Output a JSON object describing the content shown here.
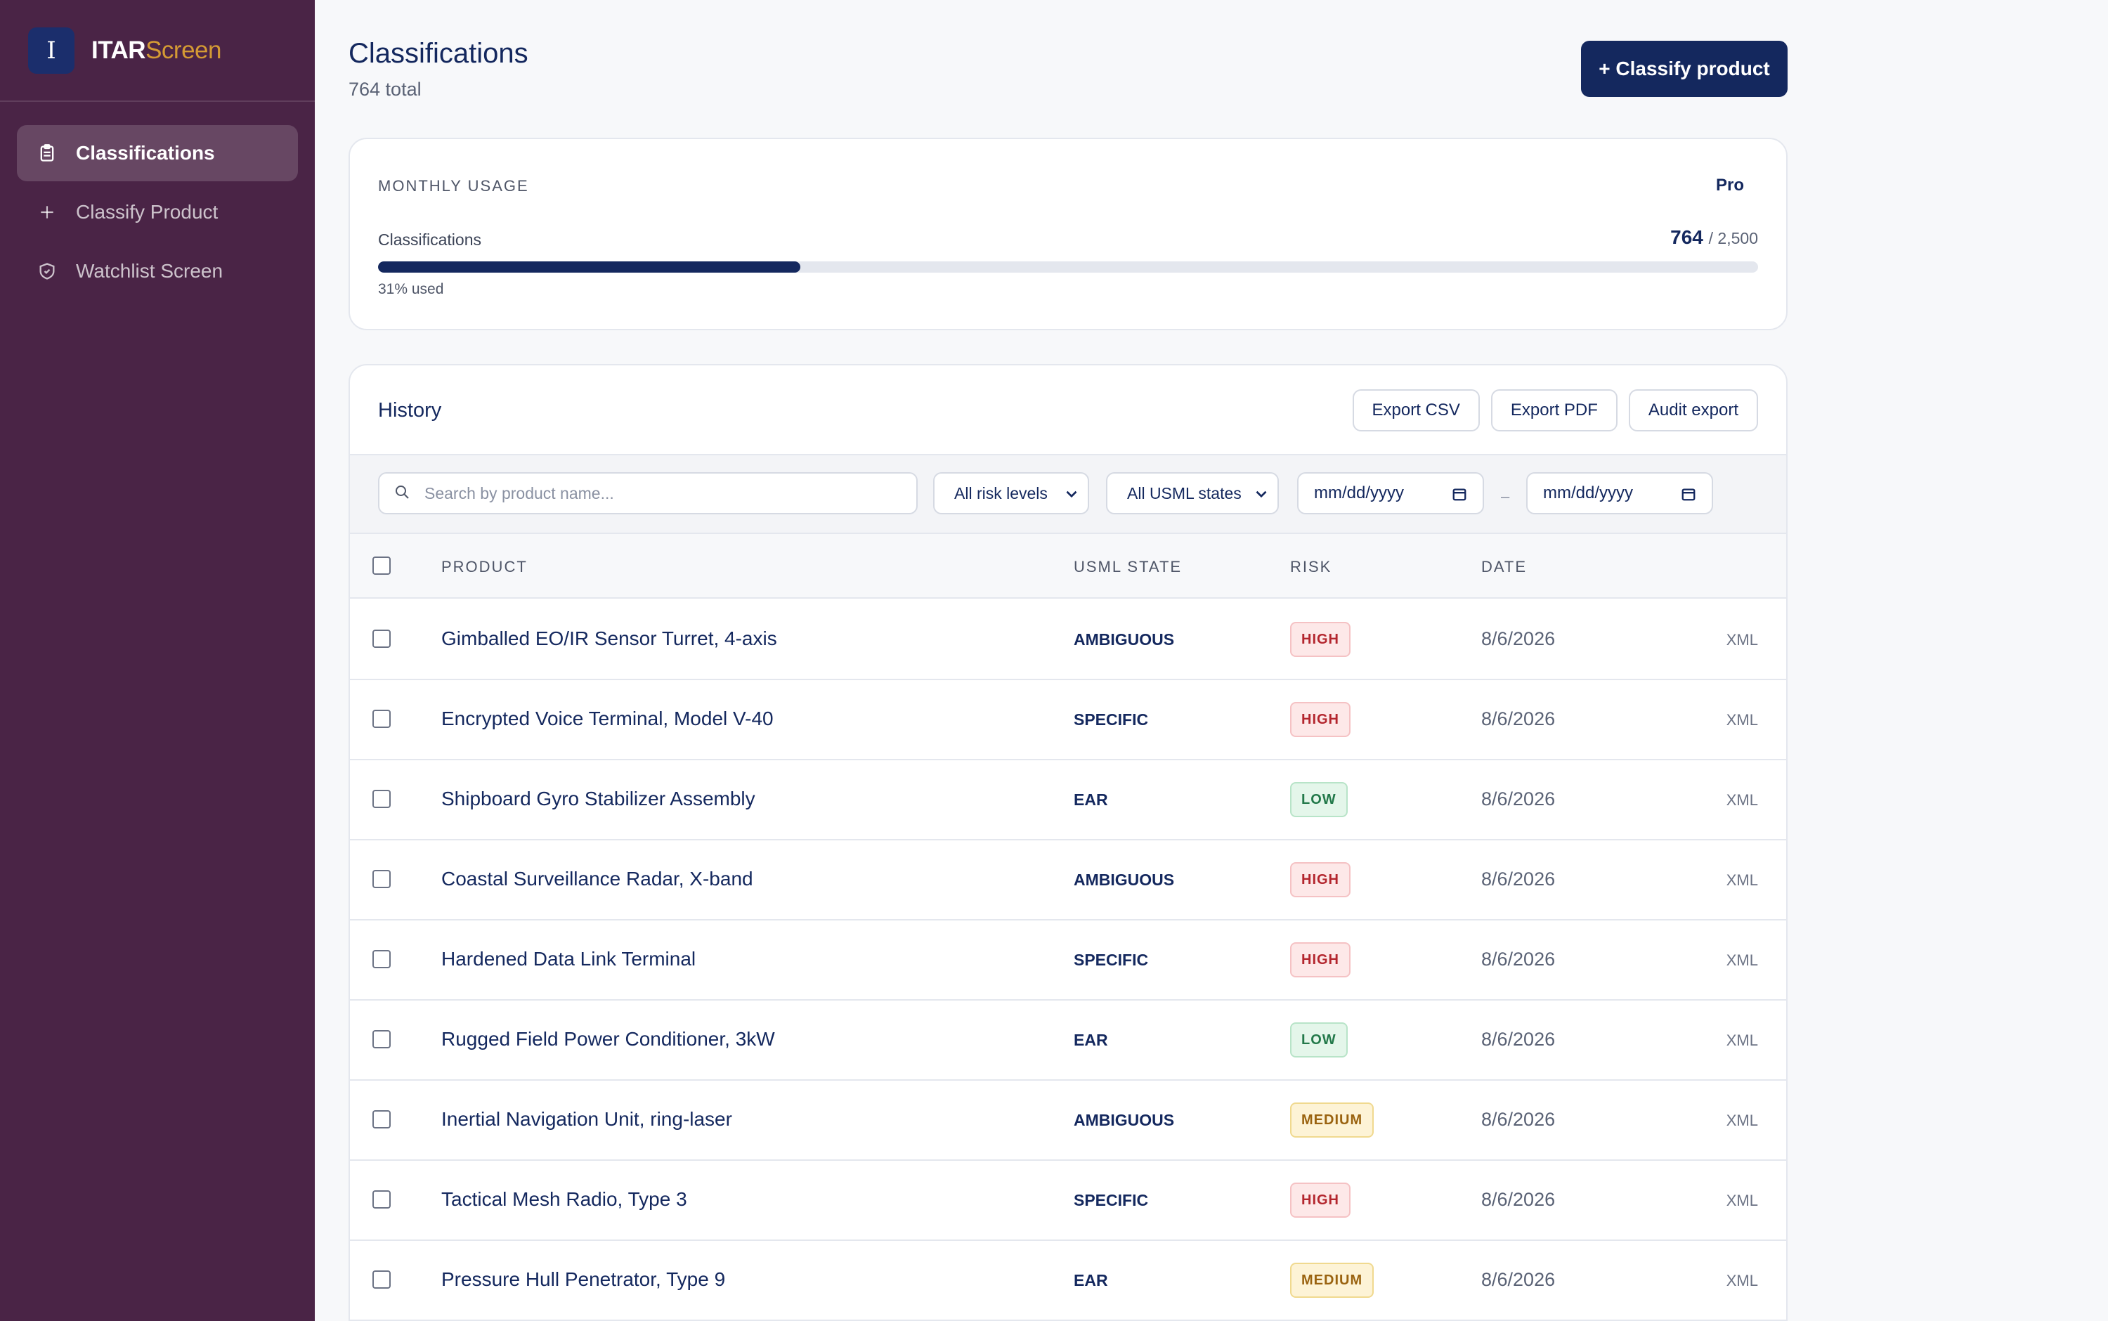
{
  "brand": {
    "logo_letter": "I",
    "name_part1": "ITAR",
    "name_part2": "Screen",
    "accent": "#d49a34"
  },
  "sidebar": {
    "items": [
      {
        "label": "Classifications",
        "icon": "clipboard-icon",
        "active": true
      },
      {
        "label": "Classify Product",
        "icon": "plus-icon",
        "active": false
      },
      {
        "label": "Watchlist Screen",
        "icon": "shield-icon",
        "active": false
      }
    ]
  },
  "header": {
    "title": "Classifications",
    "subtitle": "764 total",
    "primary_button": "+ Classify product"
  },
  "usage": {
    "heading": "MONTHLY USAGE",
    "plan": "Pro",
    "label": "Classifications",
    "used": "764",
    "limit": "/ 2,500",
    "used_fraction": 0.306,
    "used_text": "31% used"
  },
  "history": {
    "title": "History",
    "actions": [
      "Export CSV",
      "Export PDF",
      "Audit export"
    ],
    "filters": {
      "search_placeholder": "Search by product name...",
      "risk_select": "All risk levels",
      "state_select": "All USML states",
      "date_from": "mm/dd/yyyy",
      "date_sep": "–",
      "date_to": "mm/dd/yyyy"
    },
    "columns": {
      "product": "PRODUCT",
      "state": "USML STATE",
      "risk": "RISK",
      "date": "DATE"
    },
    "rows": [
      {
        "product": "Gimballed EO/IR Sensor Turret, 4-axis",
        "state": "AMBIGUOUS",
        "risk": "HIGH",
        "risk_level": "high",
        "date": "8/6/2026",
        "action": "XML"
      },
      {
        "product": "Encrypted Voice Terminal, Model V-40",
        "state": "SPECIFIC",
        "risk": "HIGH",
        "risk_level": "high",
        "date": "8/6/2026",
        "action": "XML"
      },
      {
        "product": "Shipboard Gyro Stabilizer Assembly",
        "state": "EAR",
        "risk": "LOW",
        "risk_level": "low",
        "date": "8/6/2026",
        "action": "XML"
      },
      {
        "product": "Coastal Surveillance Radar, X-band",
        "state": "AMBIGUOUS",
        "risk": "HIGH",
        "risk_level": "high",
        "date": "8/6/2026",
        "action": "XML"
      },
      {
        "product": "Hardened Data Link Terminal",
        "state": "SPECIFIC",
        "risk": "HIGH",
        "risk_level": "high",
        "date": "8/6/2026",
        "action": "XML"
      },
      {
        "product": "Rugged Field Power Conditioner, 3kW",
        "state": "EAR",
        "risk": "LOW",
        "risk_level": "low",
        "date": "8/6/2026",
        "action": "XML"
      },
      {
        "product": "Inertial Navigation Unit, ring-laser",
        "state": "AMBIGUOUS",
        "risk": "MEDIUM",
        "risk_level": "medium",
        "date": "8/6/2026",
        "action": "XML"
      },
      {
        "product": "Tactical Mesh Radio, Type 3",
        "state": "SPECIFIC",
        "risk": "HIGH",
        "risk_level": "high",
        "date": "8/6/2026",
        "action": "XML"
      },
      {
        "product": "Pressure Hull Penetrator, Type 9",
        "state": "EAR",
        "risk": "MEDIUM",
        "risk_level": "medium",
        "date": "8/6/2026",
        "action": "XML"
      }
    ]
  },
  "colors": {
    "sidebar_bg": "#4a2446",
    "primary": "#14285e",
    "high": "#b3262e",
    "low": "#23794a",
    "medium": "#9a6310"
  }
}
